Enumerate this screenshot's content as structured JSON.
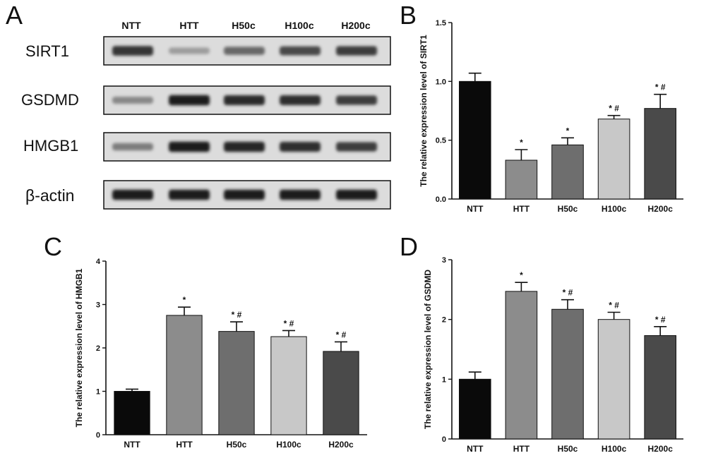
{
  "panels": {
    "A": "A",
    "B": "B",
    "C": "C",
    "D": "D"
  },
  "blot": {
    "lanes": [
      "NTT",
      "HTT",
      "H50c",
      "H100c",
      "H200c"
    ],
    "rows": [
      {
        "label": "SIRT1",
        "intensity": [
          0.85,
          0.35,
          0.6,
          0.75,
          0.8
        ]
      },
      {
        "label": "GSDMD",
        "intensity": [
          0.45,
          0.95,
          0.9,
          0.88,
          0.8
        ]
      },
      {
        "label": "HMGB1",
        "intensity": [
          0.5,
          0.95,
          0.92,
          0.88,
          0.8
        ]
      },
      {
        "label": "β-actin",
        "intensity": [
          0.95,
          0.95,
          0.95,
          0.95,
          0.95
        ]
      }
    ]
  },
  "chart_data": [
    {
      "panel": "B",
      "type": "bar",
      "categories": [
        "NTT",
        "HTT",
        "H50c",
        "H100c",
        "H200c"
      ],
      "values": [
        1.0,
        0.33,
        0.46,
        0.68,
        0.77
      ],
      "errors": [
        0.07,
        0.09,
        0.06,
        0.03,
        0.12
      ],
      "annotations": [
        "",
        "*",
        "*",
        "*#",
        "*#"
      ],
      "colors": [
        "#0a0a0a",
        "#8c8c8c",
        "#6e6e6e",
        "#c8c8c8",
        "#4a4a4a"
      ],
      "ylabel": "The relative expression level of SIRT1",
      "ylim": [
        0,
        1.5
      ],
      "yticks": [
        "0.0",
        "0.5",
        "1.0",
        "1.5"
      ],
      "ytick_values": [
        0,
        0.5,
        1.0,
        1.5
      ]
    },
    {
      "panel": "C",
      "type": "bar",
      "categories": [
        "NTT",
        "HTT",
        "H50c",
        "H100c",
        "H200c"
      ],
      "values": [
        1.0,
        2.75,
        2.38,
        2.26,
        1.92
      ],
      "errors": [
        0.05,
        0.19,
        0.22,
        0.14,
        0.22
      ],
      "annotations": [
        "",
        "*",
        "*#",
        "*#",
        "*#"
      ],
      "colors": [
        "#0a0a0a",
        "#8c8c8c",
        "#6e6e6e",
        "#c8c8c8",
        "#4a4a4a"
      ],
      "ylabel": "The relative expression level of HMGB1",
      "ylim": [
        0,
        4
      ],
      "yticks": [
        "0",
        "1",
        "2",
        "3",
        "4"
      ],
      "ytick_values": [
        0,
        1,
        2,
        3,
        4
      ]
    },
    {
      "panel": "D",
      "type": "bar",
      "categories": [
        "NTT",
        "HTT",
        "H50c",
        "H100c",
        "H200c"
      ],
      "values": [
        1.0,
        2.47,
        2.17,
        2.0,
        1.73
      ],
      "errors": [
        0.12,
        0.15,
        0.16,
        0.12,
        0.15
      ],
      "annotations": [
        "",
        "*",
        "*#",
        "*#",
        "*#"
      ],
      "colors": [
        "#0a0a0a",
        "#8c8c8c",
        "#6e6e6e",
        "#c8c8c8",
        "#4a4a4a"
      ],
      "ylabel": "The relative expression level of GSDMD",
      "ylim": [
        0,
        3
      ],
      "yticks": [
        "0",
        "1",
        "2",
        "3"
      ],
      "ytick_values": [
        0,
        1,
        2,
        3
      ]
    }
  ]
}
